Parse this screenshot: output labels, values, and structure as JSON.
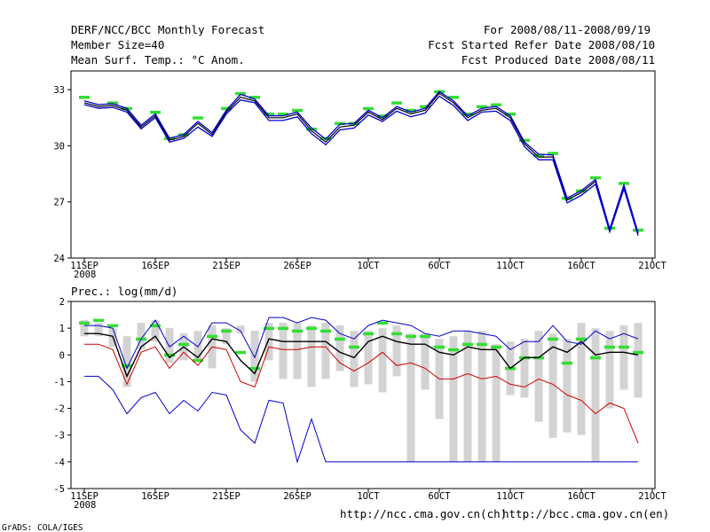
{
  "header": {
    "title": "DERF/NCC/BCC Monthly Forecast",
    "member_size": "Member Size=40",
    "temp_label": "Mean Surf. Temp.: °C Anom.",
    "period": "For 2008/08/11-2008/09/19",
    "started": "Fcst Started Refer Date 2008/08/10",
    "produced": "Fcst Produced Date 2008/08/11"
  },
  "footer": {
    "url_ch": "http://ncc.cma.gov.cn(ch)",
    "url_en": "http://bcc.cma.gov.cn(en)",
    "credit": "GrADS: COLA/IGES"
  },
  "colors": {
    "black": "#000000",
    "red": "#cc0000",
    "blue": "#0000cc",
    "green": "#33dd33",
    "bar": "#d3d3d3"
  },
  "chart_data": [
    {
      "type": "line",
      "title": "Mean Surf. Temp.: °C Anom.",
      "x_ticks": [
        "11SEP",
        "16SEP",
        "21SEP",
        "26SEP",
        "1OCT",
        "6OCT",
        "11OCT",
        "16OCT",
        "21OCT"
      ],
      "x_year": "2008",
      "x_range": [
        0,
        40
      ],
      "ylim": [
        24,
        34
      ],
      "y_ticks": [
        "24",
        "27",
        "30",
        "33"
      ],
      "y_tick_values": [
        24,
        27,
        30,
        33
      ],
      "series": [
        {
          "name": "ensemble mean",
          "color": "black",
          "values": [
            32.3,
            32.1,
            32.15,
            31.9,
            31.0,
            31.6,
            30.3,
            30.5,
            31.2,
            30.6,
            31.8,
            32.6,
            32.4,
            31.5,
            31.5,
            31.7,
            30.8,
            30.2,
            31.0,
            31.1,
            31.8,
            31.4,
            32.0,
            31.7,
            31.9,
            32.8,
            32.3,
            31.5,
            31.9,
            32.0,
            31.5,
            30.1,
            29.4,
            29.4,
            27.1,
            27.5,
            28.1,
            25.5,
            27.8,
            25.3
          ]
        },
        {
          "name": "upper",
          "color": "blue",
          "values": [
            32.4,
            32.2,
            32.25,
            32.0,
            31.1,
            31.7,
            30.4,
            30.6,
            31.3,
            30.7,
            31.9,
            32.75,
            32.5,
            31.6,
            31.6,
            31.8,
            30.95,
            30.35,
            31.15,
            31.2,
            31.9,
            31.5,
            32.1,
            31.8,
            32.0,
            32.9,
            32.4,
            31.6,
            32.0,
            32.1,
            31.6,
            30.2,
            29.55,
            29.5,
            27.2,
            27.6,
            28.2,
            25.55,
            27.9,
            25.35
          ]
        },
        {
          "name": "lower",
          "color": "blue",
          "values": [
            32.2,
            32.0,
            32.05,
            31.8,
            30.9,
            31.5,
            30.2,
            30.4,
            31.0,
            30.5,
            31.7,
            32.45,
            32.3,
            31.35,
            31.35,
            31.55,
            30.65,
            30.05,
            30.85,
            30.95,
            31.65,
            31.3,
            31.85,
            31.55,
            31.75,
            32.65,
            32.15,
            31.35,
            31.8,
            31.85,
            31.35,
            29.95,
            29.25,
            29.25,
            26.95,
            27.35,
            27.95,
            25.4,
            27.7,
            25.2
          ]
        },
        {
          "name": "observed",
          "color": "green",
          "values": [
            32.6,
            null,
            32.3,
            32.0,
            null,
            31.8,
            30.4,
            30.6,
            31.5,
            null,
            32.0,
            32.8,
            32.6,
            31.7,
            31.7,
            31.9,
            30.9,
            30.4,
            31.2,
            31.2,
            32.0,
            31.6,
            32.3,
            31.9,
            32.1,
            32.9,
            32.6,
            31.7,
            32.1,
            32.2,
            31.7,
            30.3,
            29.5,
            29.6,
            27.2,
            27.6,
            28.3,
            25.6,
            28.0,
            25.5
          ]
        }
      ]
    },
    {
      "type": "line",
      "title": "Prec.: log(mm/d)",
      "x_ticks": [
        "11SEP",
        "16SEP",
        "21SEP",
        "26SEP",
        "1OCT",
        "6OCT",
        "11OCT",
        "16OCT",
        "21OCT"
      ],
      "x_year": "2008",
      "x_range": [
        0,
        40
      ],
      "ylim": [
        -5,
        2
      ],
      "y_ticks": [
        "-5",
        "-4",
        "-3",
        "-2",
        "-1",
        "0",
        "1",
        "2"
      ],
      "y_tick_values": [
        -5,
        -4,
        -3,
        -2,
        -1,
        0,
        1,
        2
      ],
      "bars": {
        "name": "ensemble spread",
        "color": "bar",
        "low": [
          0.7,
          0.7,
          0.3,
          -1.2,
          0.2,
          0.5,
          -0.3,
          -0.2,
          -0.2,
          -0.5,
          0.4,
          0.8,
          -1.0,
          -0.2,
          -0.9,
          -0.9,
          -1.2,
          -0.9,
          -0.6,
          -1.2,
          -1.1,
          -1.4,
          -0.8,
          -4.0,
          -1.3,
          -2.4,
          -4.0,
          -4.0,
          -4.0,
          -4.0,
          -1.5,
          -1.6,
          -2.5,
          -3.1,
          -2.9,
          -3.0,
          -4.0,
          -2.0,
          -1.3,
          -1.6
        ],
        "high": [
          1.3,
          1.2,
          1.0,
          0.7,
          1.2,
          1.3,
          1.0,
          0.8,
          0.9,
          1.1,
          1.0,
          1.1,
          0.9,
          1.2,
          1.2,
          1.2,
          1.1,
          1.2,
          1.1,
          0.9,
          0.9,
          1.0,
          1.1,
          0.8,
          0.8,
          0.6,
          0.7,
          0.9,
          0.9,
          0.4,
          0.5,
          0.6,
          0.9,
          0.8,
          0.6,
          1.2,
          1.0,
          0.9,
          1.1,
          1.2
        ]
      },
      "series": [
        {
          "name": "ensemble mean",
          "color": "black",
          "values": [
            0.8,
            0.8,
            0.7,
            -0.8,
            0.3,
            0.7,
            -0.1,
            0.3,
            -0.1,
            0.6,
            0.5,
            -0.2,
            -0.7,
            0.6,
            0.5,
            0.5,
            0.5,
            0.5,
            0.1,
            -0.1,
            0.5,
            0.7,
            0.5,
            0.4,
            0.4,
            0.1,
            0.0,
            0.3,
            0.2,
            0.2,
            -0.5,
            -0.1,
            -0.1,
            0.3,
            0.1,
            0.5,
            0.0,
            0.1,
            0.1,
            0.0
          ]
        },
        {
          "name": "upper",
          "color": "blue",
          "values": [
            1.1,
            1.1,
            1.0,
            -0.5,
            0.6,
            1.3,
            0.3,
            0.7,
            0.3,
            1.2,
            1.2,
            0.9,
            -0.1,
            1.4,
            1.4,
            1.2,
            1.4,
            1.3,
            0.8,
            0.6,
            1.1,
            1.3,
            1.2,
            1.1,
            0.8,
            0.7,
            0.9,
            0.9,
            0.8,
            0.7,
            0.2,
            0.5,
            0.5,
            1.1,
            0.5,
            0.4,
            0.9,
            0.6,
            0.8,
            0.6
          ]
        },
        {
          "name": "lower mean",
          "color": "red",
          "values": [
            0.4,
            0.4,
            0.2,
            -1.1,
            0.1,
            0.3,
            -0.5,
            0.1,
            -0.4,
            0.3,
            0.2,
            -1.0,
            -1.2,
            0.3,
            0.2,
            0.2,
            0.3,
            0.3,
            -0.3,
            -0.6,
            -0.3,
            0.1,
            -0.4,
            -0.3,
            -0.5,
            -0.9,
            -0.9,
            -0.7,
            -0.9,
            -0.8,
            -1.1,
            -1.2,
            -0.9,
            -1.1,
            -1.5,
            -1.7,
            -2.2,
            -1.8,
            -2.0,
            -3.3
          ]
        },
        {
          "name": "minimum",
          "color": "blue",
          "values": [
            -0.8,
            -0.8,
            -1.3,
            -2.2,
            -1.6,
            -1.4,
            -2.2,
            -1.7,
            -2.1,
            -1.4,
            -1.5,
            -2.8,
            -3.3,
            -1.7,
            -1.8,
            -4.0,
            -2.4,
            -4.0,
            -4.0,
            -4.0,
            -4.0,
            -4.0,
            -4.0,
            -4.0,
            -4.0,
            -4.0,
            -4.0,
            -4.0,
            -4.0,
            -4.0,
            -4.0,
            -4.0,
            -4.0,
            -4.0,
            -4.0,
            -4.0,
            -4.0,
            -4.0,
            -4.0,
            -4.0
          ]
        },
        {
          "name": "observed",
          "color": "green",
          "values": [
            1.2,
            1.3,
            1.1,
            -0.4,
            0.6,
            1.1,
            0.0,
            0.4,
            -0.2,
            0.7,
            0.9,
            0.1,
            -0.5,
            1.0,
            1.0,
            0.9,
            1.0,
            0.9,
            0.6,
            0.3,
            0.8,
            1.2,
            0.8,
            0.7,
            0.7,
            0.3,
            0.2,
            0.4,
            0.4,
            0.3,
            -0.5,
            -0.1,
            -0.1,
            0.6,
            -0.3,
            0.6,
            -0.1,
            0.3,
            0.3,
            0.1
          ]
        }
      ]
    }
  ]
}
